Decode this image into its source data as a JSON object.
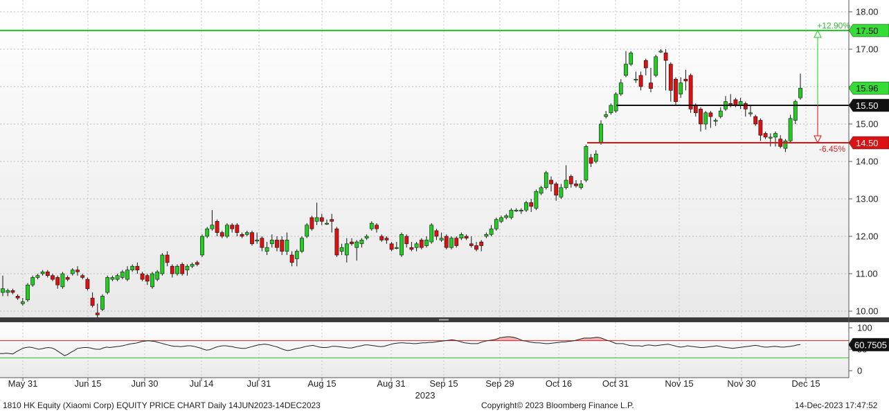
{
  "footer": {
    "chart_title": "1810 HK Equity (Xiaomi Corp) EQUITY PRICE CHART  Daily 14JUN2023-14DEC2023",
    "copyright": "Copyright© 2023 Bloomberg Finance L.P.",
    "timestamp": "14-Dec-2023 17:47:52"
  },
  "colors": {
    "up": "#22cc22",
    "down": "#dd1111",
    "target_line": "#22cc22",
    "support_line": "#111111",
    "stop_line": "#dd1111",
    "rsi_line": "#222222",
    "rsi_upper": "#dd2222",
    "rsi_lower": "#22cc22"
  },
  "chart_data": [
    {
      "type": "candlestick",
      "title": "",
      "ylim": [
        9.8,
        18.2
      ],
      "yticks": [
        "10.00",
        "11.00",
        "12.00",
        "13.00",
        "14.00",
        "15.00",
        "16.00",
        "17.00",
        "18.00"
      ],
      "x_ticks": [
        "May 31",
        "Jun 15",
        "Jun 30",
        "Jul 14",
        "Jul 31",
        "Aug 15",
        "Aug 31",
        "Sep 15",
        "Sep 29",
        "Oct 16",
        "Oct 31",
        "Nov 15",
        "Nov 30",
        "Dec 15"
      ],
      "x_year_label": "2023",
      "last_price_label": "15.96",
      "levels": [
        {
          "name": "target",
          "value": 17.5,
          "label": "17.50",
          "annotation": "+12.90%"
        },
        {
          "name": "entry",
          "value": 15.5,
          "label": "15.50"
        },
        {
          "name": "stop",
          "value": 14.5,
          "label": "14.50",
          "annotation": "-6.45%"
        }
      ],
      "candles": [
        [
          10.5,
          10.6,
          10.4,
          10.95
        ],
        [
          10.5,
          10.55,
          10.4,
          10.6
        ],
        [
          10.55,
          10.5,
          10.45,
          10.6
        ],
        [
          10.4,
          10.35,
          10.3,
          10.45
        ],
        [
          10.2,
          10.25,
          10.15,
          10.35
        ],
        [
          10.3,
          10.7,
          10.25,
          10.75
        ],
        [
          10.7,
          10.9,
          10.65,
          10.95
        ],
        [
          10.9,
          10.95,
          10.85,
          11.0
        ],
        [
          11.0,
          11.05,
          10.95,
          11.1
        ],
        [
          11.05,
          10.95,
          10.9,
          11.1
        ],
        [
          10.95,
          10.85,
          10.8,
          11.0
        ],
        [
          10.9,
          10.7,
          10.6,
          10.95
        ],
        [
          10.65,
          11.0,
          10.6,
          11.05
        ],
        [
          10.9,
          10.85,
          10.8,
          10.95
        ],
        [
          11.0,
          11.1,
          10.95,
          11.15
        ],
        [
          11.1,
          11.05,
          10.95,
          11.2
        ],
        [
          10.95,
          10.9,
          10.85,
          11.0
        ],
        [
          10.85,
          10.6,
          10.55,
          10.9
        ],
        [
          10.35,
          10.15,
          10.1,
          10.5
        ],
        [
          9.95,
          9.9,
          9.8,
          10.2
        ],
        [
          10.05,
          10.4,
          10.0,
          10.45
        ],
        [
          10.5,
          10.9,
          10.45,
          10.95
        ],
        [
          10.85,
          10.9,
          10.8,
          10.95
        ],
        [
          10.85,
          10.95,
          10.8,
          11.0
        ],
        [
          10.9,
          11.05,
          10.85,
          11.1
        ],
        [
          10.85,
          11.1,
          10.8,
          11.2
        ],
        [
          11.1,
          11.2,
          11.05,
          11.25
        ],
        [
          11.2,
          11.1,
          11.0,
          11.3
        ],
        [
          11.0,
          10.85,
          10.8,
          11.05
        ],
        [
          10.95,
          10.8,
          10.7,
          11.0
        ],
        [
          10.65,
          11.0,
          10.6,
          11.05
        ],
        [
          10.85,
          11.05,
          10.8,
          11.1
        ],
        [
          11.0,
          11.5,
          10.95,
          11.55
        ],
        [
          11.5,
          11.3,
          11.2,
          11.6
        ],
        [
          11.2,
          11.0,
          10.9,
          11.25
        ],
        [
          11.0,
          11.2,
          10.95,
          11.25
        ],
        [
          11.25,
          11.0,
          10.95,
          11.3
        ],
        [
          11.1,
          11.2,
          10.95,
          11.25
        ],
        [
          11.2,
          11.25,
          11.15,
          11.3
        ],
        [
          11.3,
          11.25,
          11.2,
          11.35
        ],
        [
          11.5,
          12.0,
          11.45,
          12.05
        ],
        [
          12.0,
          12.2,
          11.95,
          12.25
        ],
        [
          12.2,
          12.3,
          12.15,
          12.7
        ],
        [
          12.4,
          12.1,
          12.0,
          12.45
        ],
        [
          12.1,
          12.0,
          11.95,
          12.15
        ],
        [
          12.0,
          12.3,
          11.95,
          12.35
        ],
        [
          12.3,
          12.2,
          12.1,
          12.35
        ],
        [
          12.3,
          12.1,
          12.0,
          12.35
        ],
        [
          12.05,
          12.0,
          11.95,
          12.1
        ],
        [
          12.05,
          12.1,
          12.0,
          12.15
        ],
        [
          12.1,
          11.8,
          11.75,
          12.15
        ],
        [
          11.9,
          11.9,
          11.8,
          12.1
        ],
        [
          11.95,
          11.7,
          11.6,
          12.0
        ],
        [
          11.6,
          11.7,
          11.5,
          11.85
        ],
        [
          11.8,
          11.9,
          11.7,
          12.05
        ],
        [
          11.9,
          11.7,
          11.6,
          12.0
        ],
        [
          11.9,
          11.6,
          11.5,
          12.0
        ],
        [
          11.6,
          11.9,
          11.5,
          12.1
        ],
        [
          11.5,
          11.3,
          11.2,
          11.6
        ],
        [
          11.4,
          11.6,
          11.2,
          11.65
        ],
        [
          11.6,
          11.95,
          11.55,
          12.0
        ],
        [
          12.0,
          12.3,
          11.95,
          12.35
        ],
        [
          12.5,
          12.2,
          12.15,
          12.55
        ],
        [
          12.4,
          12.5,
          12.3,
          12.9
        ],
        [
          12.5,
          12.4,
          12.3,
          12.6
        ],
        [
          12.35,
          12.35,
          12.3,
          12.45
        ],
        [
          12.45,
          12.4,
          12.1,
          12.6
        ],
        [
          12.2,
          11.5,
          11.45,
          12.25
        ],
        [
          11.6,
          11.7,
          11.5,
          11.8
        ],
        [
          11.5,
          11.8,
          11.3,
          11.95
        ],
        [
          11.85,
          11.8,
          11.75,
          11.95
        ],
        [
          11.7,
          11.85,
          11.35,
          11.9
        ],
        [
          11.8,
          11.9,
          11.7,
          11.95
        ],
        [
          11.95,
          12.0,
          11.9,
          12.05
        ],
        [
          12.2,
          12.35,
          12.15,
          12.4
        ],
        [
          12.3,
          12.2,
          12.1,
          12.35
        ],
        [
          12.0,
          11.9,
          11.85,
          12.05
        ],
        [
          11.95,
          11.9,
          11.8,
          12.0
        ],
        [
          11.8,
          11.65,
          11.6,
          11.85
        ],
        [
          11.7,
          11.7,
          11.65,
          11.85
        ],
        [
          11.5,
          12.05,
          11.45,
          12.1
        ],
        [
          12.0,
          11.8,
          11.7,
          12.05
        ],
        [
          11.7,
          11.65,
          11.6,
          11.85
        ],
        [
          11.7,
          11.8,
          11.6,
          11.85
        ],
        [
          11.9,
          11.7,
          11.65,
          11.95
        ],
        [
          11.75,
          11.9,
          11.7,
          12.0
        ],
        [
          11.85,
          12.3,
          11.8,
          12.35
        ],
        [
          12.15,
          12.0,
          11.9,
          12.2
        ],
        [
          11.9,
          11.95,
          11.85,
          12.1
        ],
        [
          12.0,
          11.7,
          11.65,
          12.05
        ],
        [
          11.7,
          11.95,
          11.65,
          12.0
        ],
        [
          11.95,
          11.75,
          11.7,
          12.0
        ],
        [
          11.95,
          12.05,
          11.9,
          12.1
        ],
        [
          12.0,
          11.95,
          11.9,
          12.05
        ],
        [
          11.8,
          11.75,
          11.7,
          12.0
        ],
        [
          11.75,
          11.65,
          11.6,
          11.85
        ],
        [
          11.85,
          11.75,
          11.6,
          11.9
        ],
        [
          12.0,
          12.05,
          11.95,
          12.1
        ],
        [
          12.05,
          12.2,
          12.0,
          12.3
        ],
        [
          12.2,
          12.45,
          12.15,
          12.5
        ],
        [
          12.4,
          12.5,
          12.35,
          12.55
        ],
        [
          12.5,
          12.55,
          12.45,
          12.6
        ],
        [
          12.5,
          12.7,
          12.45,
          12.75
        ],
        [
          12.7,
          12.7,
          12.65,
          12.75
        ],
        [
          12.7,
          12.7,
          12.6,
          12.75
        ],
        [
          12.7,
          12.9,
          12.65,
          12.95
        ],
        [
          12.9,
          12.8,
          12.65,
          13.0
        ],
        [
          12.75,
          13.2,
          12.7,
          13.25
        ],
        [
          13.15,
          13.3,
          13.1,
          13.35
        ],
        [
          13.3,
          13.7,
          13.25,
          13.75
        ],
        [
          13.5,
          13.4,
          13.2,
          13.6
        ],
        [
          13.4,
          13.1,
          12.95,
          13.45
        ],
        [
          13.05,
          13.3,
          13.0,
          13.4
        ],
        [
          13.3,
          13.5,
          13.25,
          13.9
        ],
        [
          13.6,
          13.4,
          13.3,
          13.65
        ],
        [
          13.4,
          13.35,
          13.3,
          13.5
        ],
        [
          13.3,
          13.4,
          13.25,
          13.5
        ],
        [
          13.5,
          14.4,
          13.45,
          14.45
        ],
        [
          14.1,
          13.95,
          13.85,
          14.2
        ],
        [
          14.0,
          14.2,
          13.95,
          14.3
        ],
        [
          14.5,
          15.0,
          14.45,
          15.1
        ],
        [
          15.2,
          15.25,
          15.15,
          15.35
        ],
        [
          15.3,
          15.5,
          15.25,
          15.55
        ],
        [
          15.35,
          15.8,
          15.3,
          15.85
        ],
        [
          15.8,
          16.1,
          15.75,
          16.2
        ],
        [
          16.3,
          16.6,
          16.25,
          16.95
        ],
        [
          16.6,
          16.9,
          16.55,
          16.95
        ],
        [
          16.2,
          16.2,
          16.1,
          16.4
        ],
        [
          16.3,
          16.0,
          15.9,
          16.4
        ],
        [
          16.7,
          16.5,
          16.3,
          16.75
        ],
        [
          16.1,
          15.95,
          15.85,
          16.5
        ],
        [
          16.3,
          16.8,
          16.25,
          16.85
        ],
        [
          16.95,
          16.95,
          16.9,
          17.0
        ],
        [
          16.9,
          16.7,
          15.9,
          17.0
        ],
        [
          16.6,
          15.9,
          15.6,
          16.65
        ],
        [
          16.2,
          15.6,
          15.5,
          16.25
        ],
        [
          15.8,
          16.1,
          15.7,
          16.25
        ],
        [
          16.2,
          16.15,
          15.9,
          16.45
        ],
        [
          16.3,
          15.4,
          15.3,
          16.35
        ],
        [
          15.5,
          15.3,
          15.2,
          15.55
        ],
        [
          15.4,
          15.0,
          14.8,
          15.45
        ],
        [
          15.0,
          15.3,
          14.85,
          15.35
        ],
        [
          15.3,
          15.2,
          14.9,
          15.35
        ],
        [
          15.1,
          15.1,
          14.95,
          15.15
        ],
        [
          15.2,
          15.35,
          15.15,
          15.45
        ],
        [
          15.4,
          15.6,
          15.35,
          15.75
        ],
        [
          15.55,
          15.5,
          15.45,
          15.8
        ],
        [
          15.65,
          15.5,
          15.45,
          15.7
        ],
        [
          15.5,
          15.6,
          15.4,
          15.7
        ],
        [
          15.55,
          15.4,
          15.2,
          15.6
        ],
        [
          15.3,
          15.3,
          15.2,
          15.5
        ],
        [
          15.2,
          15.0,
          14.95,
          15.25
        ],
        [
          15.1,
          14.7,
          14.55,
          15.15
        ],
        [
          14.75,
          14.65,
          14.6,
          14.8
        ],
        [
          14.65,
          14.65,
          14.4,
          14.75
        ],
        [
          14.65,
          14.75,
          14.4,
          14.8
        ],
        [
          14.6,
          14.4,
          14.35,
          14.7
        ],
        [
          14.35,
          14.55,
          14.25,
          14.6
        ],
        [
          14.55,
          15.15,
          14.5,
          15.25
        ],
        [
          15.1,
          15.6,
          15.0,
          15.65
        ],
        [
          15.7,
          15.96,
          15.65,
          16.35
        ]
      ]
    },
    {
      "type": "line",
      "title": "",
      "ylim": [
        -15,
        115
      ],
      "yticks": [
        "100",
        "50",
        "0"
      ],
      "upper_band": 70,
      "lower_band": 30,
      "last_value_label": "60.7505",
      "values": [
        40,
        40,
        41,
        40,
        39,
        44,
        48,
        52,
        54,
        55,
        54,
        52,
        50,
        51,
        53,
        54,
        53,
        50,
        45,
        40,
        35,
        38,
        43,
        47,
        52,
        53,
        54,
        54,
        53,
        51,
        50,
        50,
        53,
        55,
        54,
        55,
        56,
        57,
        58,
        60,
        62,
        63,
        64,
        66,
        68,
        69,
        70,
        69,
        68,
        66,
        64,
        62,
        60,
        58,
        57,
        57,
        56,
        57,
        58,
        58,
        57,
        55,
        53,
        50,
        48,
        49,
        52,
        55,
        57,
        58,
        58,
        57,
        56,
        54,
        53,
        52,
        52,
        54,
        56,
        58,
        60,
        61,
        62,
        61,
        59,
        57,
        55,
        52,
        49,
        47,
        48,
        50,
        52,
        53,
        55,
        57,
        58,
        59,
        57,
        55,
        54,
        54,
        55,
        57,
        57,
        56,
        55,
        54,
        53,
        53,
        55,
        57,
        58,
        60,
        60,
        59,
        58,
        57,
        56,
        57,
        59,
        61,
        63,
        64,
        65,
        65,
        64,
        64,
        63,
        63,
        64,
        65,
        65,
        66,
        66,
        67,
        68,
        69,
        70,
        71,
        72,
        71,
        69,
        67,
        65,
        64,
        63,
        63,
        63,
        66,
        68,
        70,
        71,
        72,
        74,
        77,
        78,
        79,
        79,
        78,
        76,
        73,
        70,
        69,
        67,
        66,
        65,
        65,
        64,
        63,
        63,
        64,
        65,
        66,
        67,
        67,
        68,
        69,
        70,
        72,
        74,
        76,
        76,
        76,
        77,
        78,
        77,
        74,
        71,
        69,
        66,
        63,
        63,
        63,
        61,
        59,
        58,
        58,
        58,
        57,
        59,
        60,
        59,
        58,
        59,
        60,
        61,
        62,
        60,
        58,
        56,
        55,
        56,
        58,
        57,
        56,
        55,
        54,
        54,
        55,
        56,
        57,
        58,
        57,
        55,
        54,
        53,
        52,
        53,
        54,
        55,
        56,
        57,
        58,
        59,
        58,
        56,
        55,
        55,
        56,
        57,
        56,
        55,
        55,
        56,
        57,
        58,
        60,
        60.75
      ]
    }
  ]
}
